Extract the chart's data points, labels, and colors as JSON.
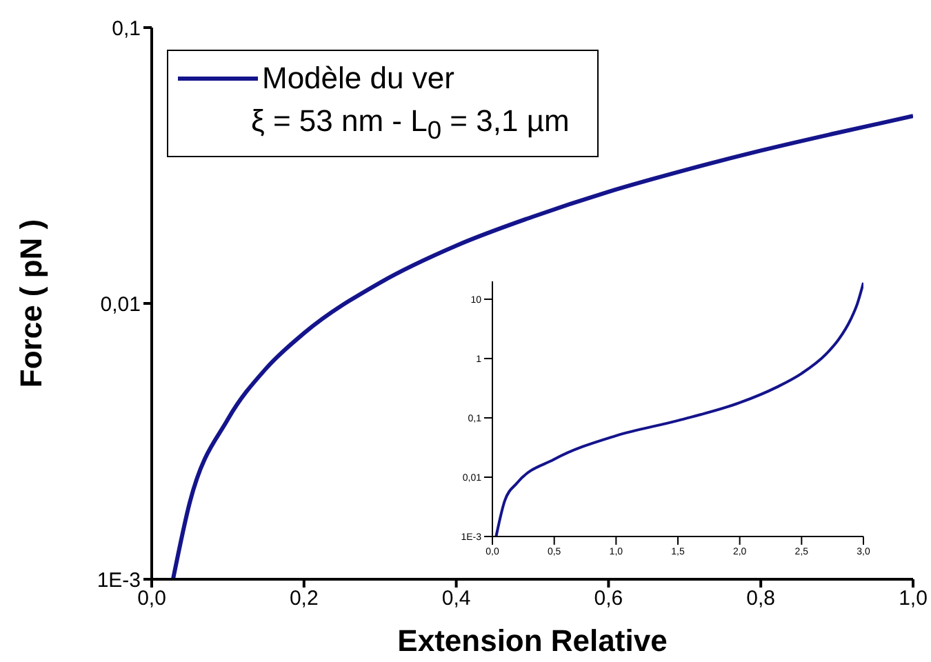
{
  "chart_data": [
    {
      "type": "line",
      "xlabel": "Extension Relative",
      "ylabel": "Force ( pN )",
      "log": "y",
      "legend": "top left",
      "annotations": [
        "ξ = 53 nm - L$_{0}$ = 3,1 µm"
      ],
      "x": [
        0.028,
        0.05,
        0.1,
        0.15,
        0.2,
        0.3,
        0.4,
        0.5,
        0.6,
        0.7,
        0.8,
        0.9,
        1.0
      ],
      "series": [
        {
          "name": "Modèle du ver",
          "color": "#14148c",
          "values": [
            0.001,
            0.0019,
            0.0038,
            0.0058,
            0.0078,
            0.0119,
            0.0162,
            0.0206,
            0.0254,
            0.0304,
            0.0358,
            0.0415,
            0.0478
          ]
        }
      ],
      "xlim": [
        0,
        1
      ],
      "xticks": [
        {
          "value": 0,
          "label": "0,0"
        },
        {
          "value": 0.2,
          "label": "0,2"
        },
        {
          "value": 0.4,
          "label": "0,4"
        },
        {
          "value": 0.6,
          "label": "0,6"
        },
        {
          "value": 0.8,
          "label": "0,8"
        },
        {
          "value": 1,
          "label": "1,0"
        }
      ],
      "ylim": [
        0.001,
        0.1
      ],
      "yticks": [
        {
          "value": 0.001,
          "label": "1E-3"
        },
        {
          "value": 0.01,
          "label": "0,01"
        },
        {
          "value": 0.1,
          "label": "0,1"
        }
      ]
    },
    {
      "type": "line",
      "log": "y",
      "x": [
        0.03,
        0.1,
        0.2,
        0.5,
        1.0,
        1.5,
        2.0,
        2.3,
        2.5,
        2.7,
        2.8,
        2.9,
        2.95,
        3.0
      ],
      "series": [
        {
          "color": "#14148c",
          "values": [
            0.001,
            0.004,
            0.008,
            0.02,
            0.05,
            0.09,
            0.18,
            0.33,
            0.56,
            1.2,
            2.1,
            4.7,
            8.3,
            19
          ]
        }
      ],
      "xlim": [
        0,
        3
      ],
      "xticks": [
        {
          "value": 0,
          "label": "0,0"
        },
        {
          "value": 0.5,
          "label": "0,5"
        },
        {
          "value": 1,
          "label": "1,0"
        },
        {
          "value": 1.5,
          "label": "1,5"
        },
        {
          "value": 2,
          "label": "2,0"
        },
        {
          "value": 2.5,
          "label": "2,5"
        },
        {
          "value": 3,
          "label": "3,0"
        }
      ],
      "ylim": [
        0.001,
        20
      ],
      "yticks": [
        {
          "value": 0.001,
          "label": "1E-3"
        },
        {
          "value": 0.01,
          "label": "0,01"
        },
        {
          "value": 0.1,
          "label": "0,1"
        },
        1,
        10
      ]
    }
  ]
}
